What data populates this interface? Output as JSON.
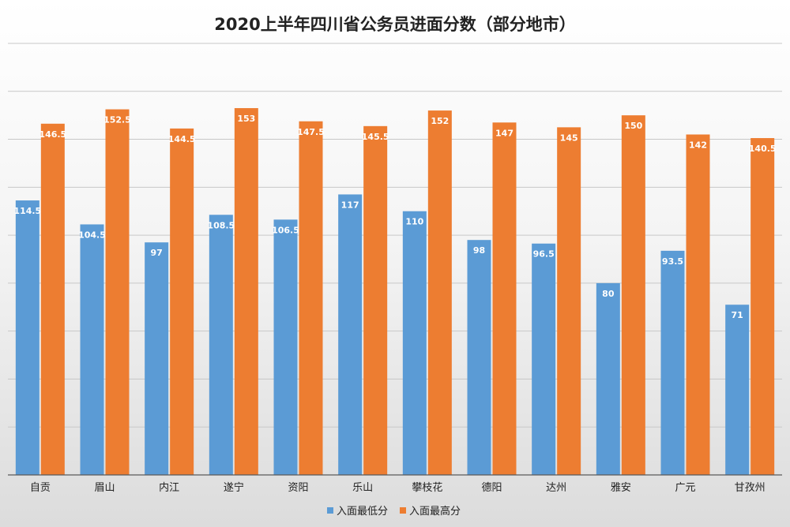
{
  "chart_data": {
    "type": "bar",
    "title": "2020上半年四川省公务员进面分数（部分地市）",
    "categories": [
      "自贡",
      "眉山",
      "内江",
      "遂宁",
      "资阳",
      "乐山",
      "攀枝花",
      "德阳",
      "达州",
      "雅安",
      "广元",
      "甘孜州"
    ],
    "series": [
      {
        "name": "入面最低分",
        "color": "#5b9bd5",
        "values": [
          114.5,
          104.5,
          97,
          108.5,
          106.5,
          117,
          110,
          98,
          96.5,
          80,
          93.5,
          71
        ],
        "labels": [
          "114.5",
          "104.5",
          "97",
          "108.5",
          "106.5",
          "117",
          "110",
          "98",
          "96.5",
          "80",
          "93.5",
          "71"
        ]
      },
      {
        "name": "入面最高分",
        "color": "#ed7d31",
        "values": [
          146.5,
          152.5,
          144.5,
          153,
          147.5,
          145.5,
          152,
          147,
          145,
          150,
          142,
          140.5
        ],
        "labels": [
          "146.5",
          "152.5",
          "144.5",
          "153",
          "147.5",
          "145.5",
          "152",
          "147",
          "145",
          "150",
          "142",
          "140.5"
        ]
      }
    ],
    "ylim": [
      0,
      180
    ],
    "grid": true,
    "legend_position": "bottom"
  }
}
